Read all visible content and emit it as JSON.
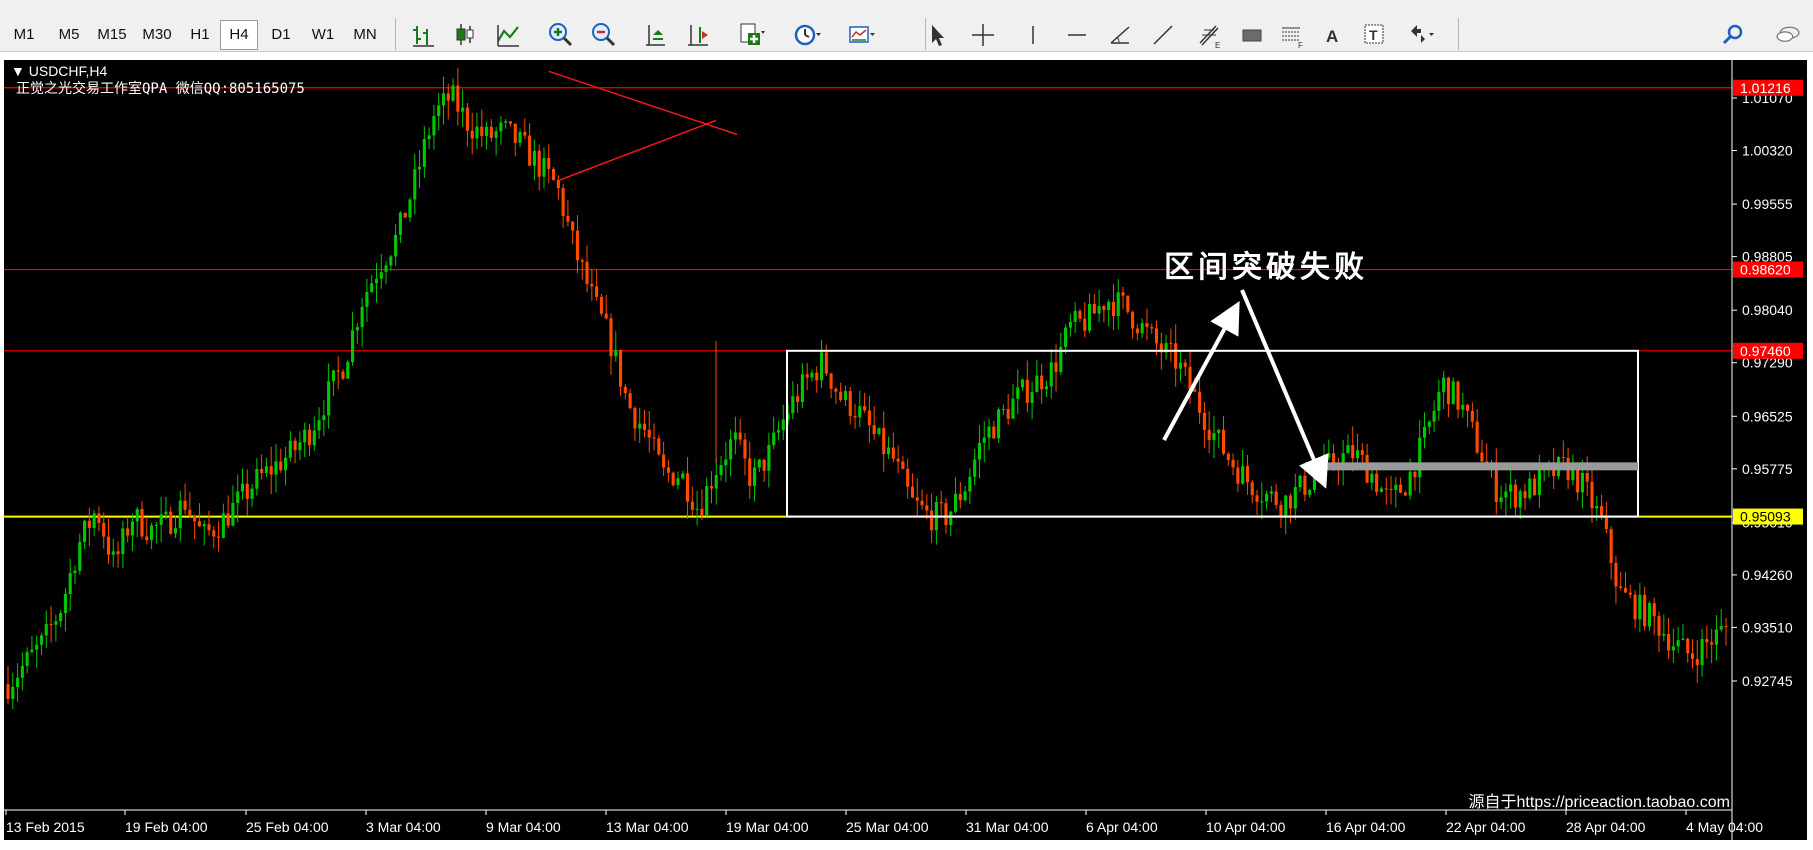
{
  "toolbar": {
    "timeframes": [
      "M1",
      "M5",
      "M15",
      "M30",
      "H1",
      "H4",
      "D1",
      "W1",
      "MN"
    ],
    "active_timeframe": "H4",
    "tools": [
      "bar-chart-icon",
      "candlestick-icon",
      "line-chart-icon",
      "zoom-in-icon",
      "zoom-out-icon",
      "auto-scroll-icon",
      "chart-shift-icon",
      "add-indicator-icon",
      "period-clock-icon",
      "template-icon",
      "cursor-icon",
      "crosshair-icon",
      "vertical-line-icon",
      "horizontal-line-icon",
      "angle-line-icon",
      "trend-line-icon",
      "fibonacci-icon",
      "rectangle-icon",
      "fibo-fan-icon",
      "text-icon",
      "text-label-icon",
      "arrow-tool-icon"
    ],
    "right_tools": [
      "search-icon",
      "chat-icon"
    ]
  },
  "chart_header": {
    "symbol": "▼ USDCHF,H4",
    "watermark_text": "正觉之光交易工作室QPA 微信QQ:805165075"
  },
  "annotation": "区间突破失败",
  "source_credit": "源自于https://priceaction.taobao.com",
  "price_axis": {
    "ticks": [
      "1.01070",
      "1.00320",
      "0.99555",
      "0.98805",
      "0.98040",
      "0.97290",
      "0.96525",
      "0.95775",
      "0.95010",
      "0.94260",
      "0.93510",
      "0.92745"
    ],
    "tick_values": [
      1.0107,
      1.0032,
      0.99555,
      0.98805,
      0.9804,
      0.9729,
      0.96525,
      0.95775,
      0.9501,
      0.9426,
      0.9351,
      0.92745
    ],
    "markers": [
      {
        "label": "1.01216",
        "value": 1.01216,
        "color": "#ff0000"
      },
      {
        "label": "0.98620",
        "value": 0.9862,
        "color": "#ff0000"
      },
      {
        "label": "0.97460",
        "value": 0.9746,
        "color": "#ff0000"
      },
      {
        "label": "0.95093",
        "value": 0.95093,
        "color": "#ffff00"
      }
    ]
  },
  "time_axis": {
    "labels": [
      "13 Feb 2015",
      "19 Feb 04:00",
      "25 Feb 04:00",
      "3 Mar 04:00",
      "9 Mar 04:00",
      "13 Mar 04:00",
      "19 Mar 04:00",
      "25 Mar 04:00",
      "31 Mar 04:00",
      "6 Apr 04:00",
      "10 Apr 04:00",
      "16 Apr 04:00",
      "22 Apr 04:00",
      "28 Apr 04:00",
      "4 May 04:00"
    ]
  },
  "colors": {
    "background": "#000000",
    "bull_candle": "#00c800",
    "bear_candle": "#ff4a00",
    "resistance_line": "#ff0000",
    "support_line": "#ffff00",
    "range_box": "#ffffff",
    "support_bar": "#9a9a9a"
  },
  "chart_data": {
    "type": "candlestick",
    "symbol": "USDCHF",
    "timeframe": "H4",
    "x": [
      "13 Feb 2015",
      "19 Feb 04:00",
      "25 Feb 04:00",
      "3 Mar 04:00",
      "9 Mar 04:00",
      "13 Mar 04:00",
      "19 Mar 04:00",
      "25 Mar 04:00",
      "31 Mar 04:00",
      "6 Apr 04:00",
      "10 Apr 04:00",
      "16 Apr 04:00",
      "22 Apr 04:00",
      "28 Apr 04:00",
      "4 May 04:00"
    ],
    "close_path": [
      0.927,
      0.93,
      0.933,
      0.938,
      0.947,
      0.952,
      0.944,
      0.951,
      0.949,
      0.95,
      0.953,
      0.948,
      0.95,
      0.953,
      0.956,
      0.958,
      0.96,
      0.963,
      0.968,
      0.973,
      0.982,
      0.987,
      0.991,
      0.999,
      1.008,
      1.011,
      1.007,
      1.005,
      1.006,
      1.004,
      1.001,
      0.998,
      0.989,
      0.982,
      0.976,
      0.967,
      0.963,
      0.957,
      0.957,
      0.952,
      0.958,
      0.962,
      0.956,
      0.96,
      0.966,
      0.97,
      0.973,
      0.968,
      0.966,
      0.962,
      0.959,
      0.953,
      0.951,
      0.951,
      0.955,
      0.962,
      0.965,
      0.968,
      0.97,
      0.972,
      0.978,
      0.979,
      0.982,
      0.981,
      0.978,
      0.975,
      0.973,
      0.968,
      0.963,
      0.959,
      0.956,
      0.954,
      0.953,
      0.955,
      0.957,
      0.959,
      0.96,
      0.957,
      0.953,
      0.956,
      0.962,
      0.97,
      0.967,
      0.961,
      0.955,
      0.954,
      0.955,
      0.957,
      0.958,
      0.955,
      0.95,
      0.94,
      0.938,
      0.936,
      0.933,
      0.931,
      0.933,
      0.935
    ],
    "levels": [
      1.01216,
      0.9862,
      0.9746,
      0.95093
    ],
    "range_box": {
      "top": 0.9746,
      "bottom": 0.95093,
      "start": "22 Mar 2015",
      "end": "30 Apr 2015"
    },
    "support_zone": 0.9581,
    "ylim": [
      0.9245,
      1.0145
    ]
  }
}
